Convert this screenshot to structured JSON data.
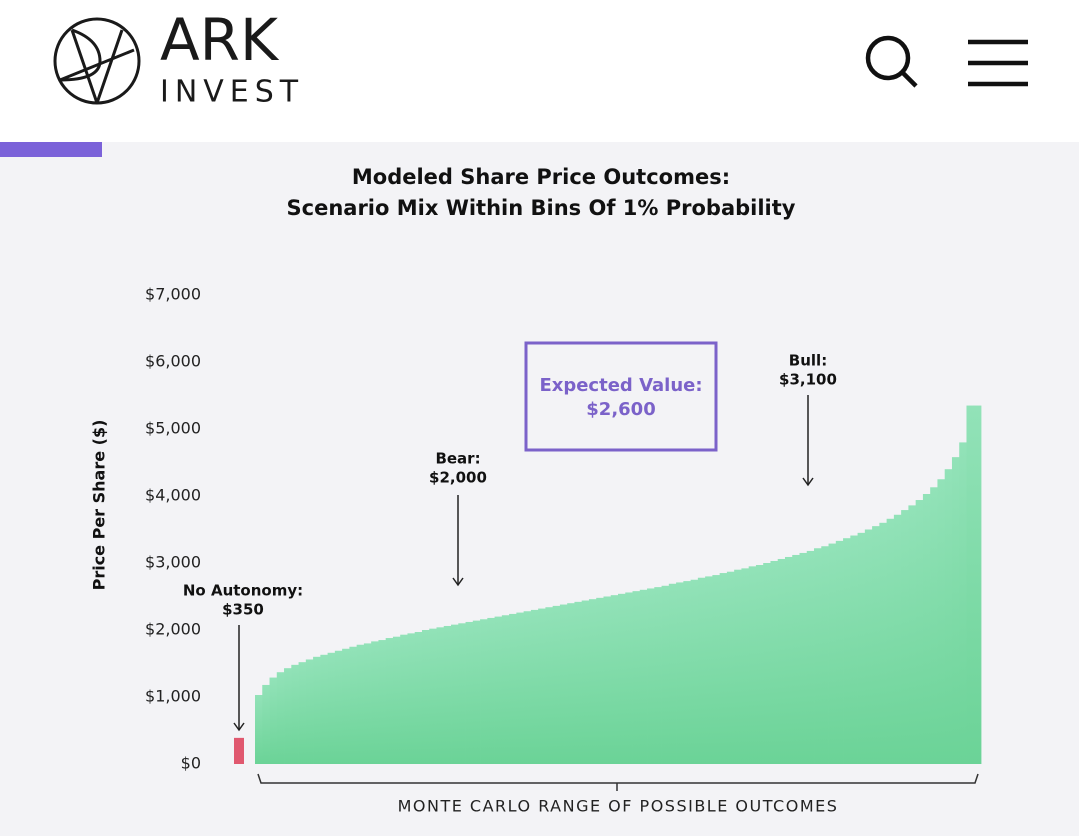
{
  "header": {
    "brand": "ARK",
    "brand_sub": "INVEST"
  },
  "chart_data": {
    "type": "bar",
    "title": [
      "Modeled Share Price Outcomes:",
      "Scenario Mix Within Bins Of 1% Probability"
    ],
    "ylabel": "Price Per Share ($)",
    "xlabel": "MONTE CARLO RANGE OF POSSIBLE OUTCOMES",
    "color": "#79d9a4",
    "values": [
      1030,
      1180,
      1290,
      1370,
      1430,
      1480,
      1520,
      1560,
      1600,
      1630,
      1660,
      1690,
      1720,
      1750,
      1780,
      1800,
      1830,
      1850,
      1880,
      1900,
      1930,
      1950,
      1970,
      2000,
      2020,
      2040,
      2060,
      2080,
      2100,
      2120,
      2140,
      2160,
      2180,
      2200,
      2220,
      2240,
      2260,
      2280,
      2300,
      2320,
      2340,
      2360,
      2380,
      2400,
      2420,
      2440,
      2460,
      2480,
      2500,
      2520,
      2540,
      2560,
      2580,
      2600,
      2620,
      2640,
      2660,
      2690,
      2710,
      2730,
      2750,
      2780,
      2800,
      2820,
      2850,
      2870,
      2900,
      2920,
      2950,
      2970,
      3000,
      3030,
      3060,
      3090,
      3120,
      3150,
      3180,
      3220,
      3250,
      3290,
      3330,
      3370,
      3410,
      3450,
      3500,
      3550,
      3600,
      3660,
      3720,
      3790,
      3860,
      3940,
      4030,
      4130,
      4250,
      4400,
      4580,
      4800,
      5350,
      5350
    ],
    "highlight": {
      "value": 390,
      "color": "#e0586f"
    },
    "ylim": [
      0,
      7000
    ],
    "yticks": [
      {
        "value": 0,
        "label": "$0"
      },
      {
        "value": 1000,
        "label": "$1,000"
      },
      {
        "value": 2000,
        "label": "$2,000"
      },
      {
        "value": 3000,
        "label": "$3,000"
      },
      {
        "value": 4000,
        "label": "$4,000"
      },
      {
        "value": 5000,
        "label": "$5,000"
      },
      {
        "value": 6000,
        "label": "$6,000"
      },
      {
        "value": 7000,
        "label": "$7,000"
      }
    ],
    "annotations": [
      {
        "name": "No Autonomy:",
        "text": "$350"
      },
      {
        "name": "Bear:",
        "text": "$2,000"
      },
      {
        "name": "Bull:",
        "text": "$3,100"
      }
    ],
    "callout": {
      "name": "Expected Value:",
      "text": "$2,600",
      "color": "#7b62c9"
    }
  }
}
